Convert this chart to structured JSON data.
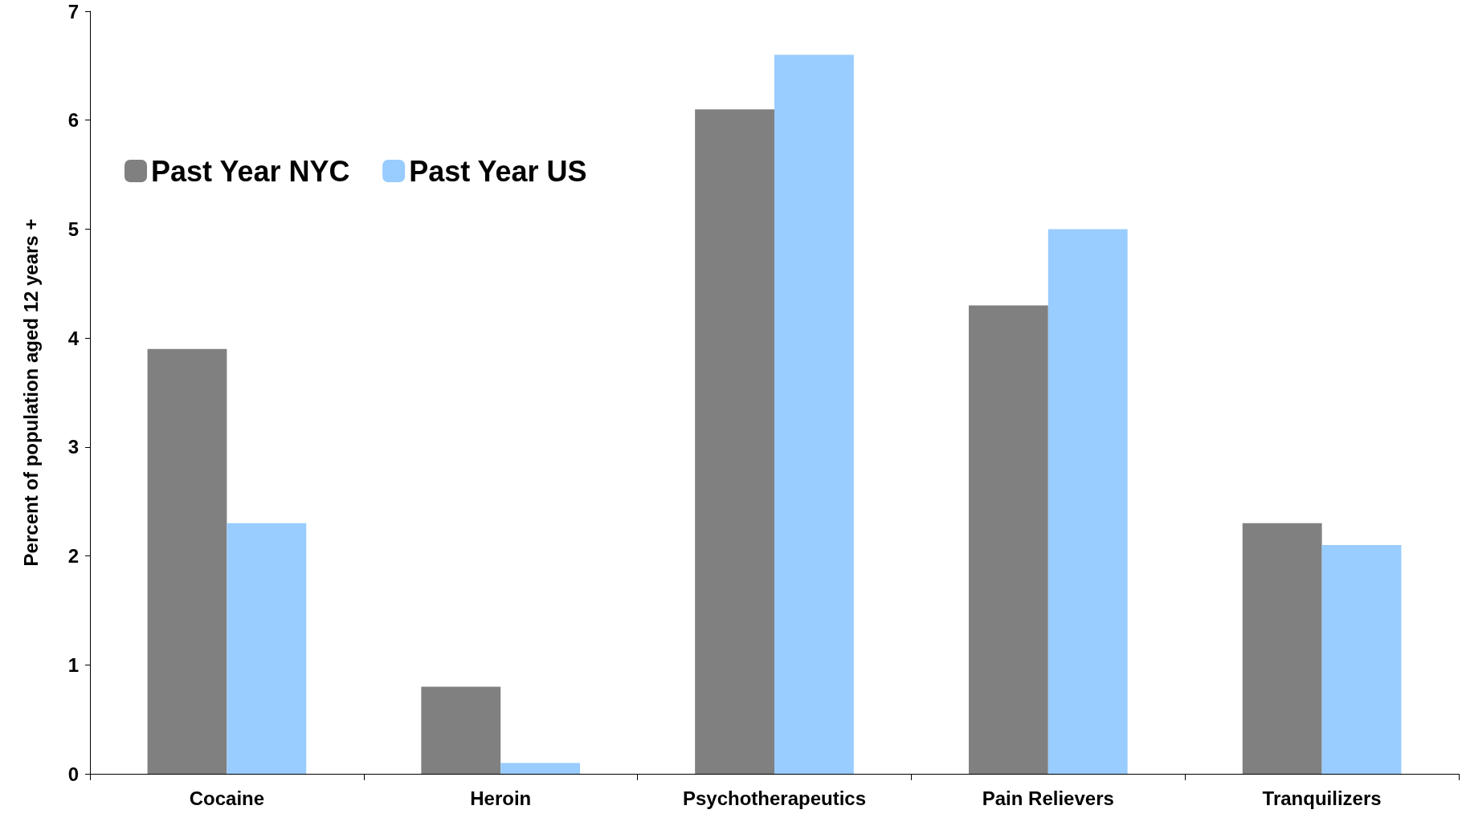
{
  "chart_data": {
    "type": "bar",
    "ylabel": "Percent of population aged 12 years +",
    "categories": [
      "Cocaine",
      "Heroin",
      "Psychotherapeutics",
      "Pain Relievers",
      "Tranquilizers"
    ],
    "series": [
      {
        "name": "Past Year NYC",
        "color": "#808080",
        "values": [
          3.9,
          0.8,
          6.1,
          4.3,
          2.3
        ]
      },
      {
        "name": "Past Year US",
        "color": "#99ccff",
        "values": [
          2.3,
          0.1,
          6.6,
          5.0,
          2.1
        ]
      }
    ],
    "ylim": [
      0,
      7
    ],
    "yticks": [
      0,
      1,
      2,
      3,
      4,
      5,
      6,
      7
    ],
    "grid": false,
    "legend": "top left"
  }
}
